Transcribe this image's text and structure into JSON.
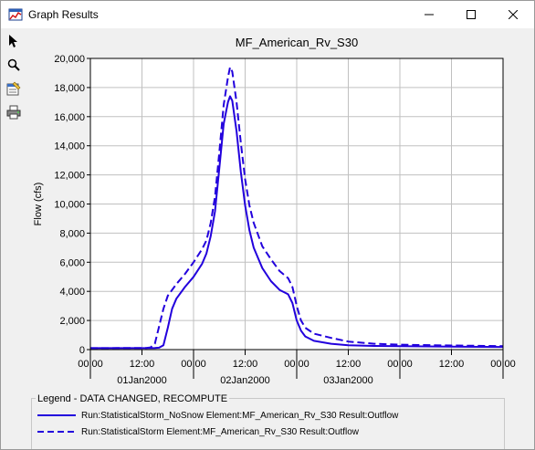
{
  "window": {
    "title": "Graph Results"
  },
  "toolbar": {
    "tools": [
      "select-arrow",
      "zoom",
      "properties",
      "print"
    ]
  },
  "chart_data": {
    "type": "line",
    "title": "MF_American_Rv_S30",
    "ylabel": "Flow (cfs)",
    "xlabel": "",
    "ylim": [
      0,
      20000
    ],
    "xlim": [
      "2000-01-01 00:00",
      "2000-01-05 00:00"
    ],
    "y_ticks": [
      "0",
      "2,000",
      "4,000",
      "6,000",
      "8,000",
      "10,000",
      "12,000",
      "14,000",
      "16,000",
      "18,000",
      "20,000"
    ],
    "x_ticks": [
      "00:00",
      "12:00",
      "00:00",
      "12:00",
      "00:00",
      "12:00",
      "00:00",
      "12:00",
      "00:00"
    ],
    "day_labels": [
      "01Jan2000",
      "02Jan2000",
      "03Jan2000"
    ],
    "grid": true,
    "series": [
      {
        "name": "Run:StatisticalStorm_NoSnow Element:MF_American_Rv_S30 Result:Outflow",
        "color": "#2200dd",
        "style": "solid",
        "points": [
          [
            0,
            100
          ],
          [
            15,
            110
          ],
          [
            16,
            130
          ],
          [
            17,
            300
          ],
          [
            18,
            1500
          ],
          [
            19,
            2800
          ],
          [
            20,
            3500
          ],
          [
            22,
            4300
          ],
          [
            24,
            5000
          ],
          [
            26,
            5900
          ],
          [
            27,
            6600
          ],
          [
            28,
            7800
          ],
          [
            29,
            9500
          ],
          [
            30,
            12500
          ],
          [
            31,
            15500
          ],
          [
            32,
            17000
          ],
          [
            32.5,
            17400
          ],
          [
            33,
            17100
          ],
          [
            34,
            15000
          ],
          [
            35,
            12200
          ],
          [
            36,
            9900
          ],
          [
            37,
            8200
          ],
          [
            38,
            7000
          ],
          [
            40,
            5600
          ],
          [
            42,
            4700
          ],
          [
            44,
            4100
          ],
          [
            46,
            3800
          ],
          [
            47,
            3200
          ],
          [
            48,
            2000
          ],
          [
            49,
            1300
          ],
          [
            50,
            900
          ],
          [
            52,
            600
          ],
          [
            56,
            400
          ],
          [
            60,
            300
          ],
          [
            66,
            250
          ],
          [
            72,
            230
          ],
          [
            84,
            200
          ],
          [
            96,
            180
          ]
        ]
      },
      {
        "name": "Run:StatisticalStorm Element:MF_American_Rv_S30 Result:Outflow",
        "color": "#2200dd",
        "style": "dashed",
        "points": [
          [
            0,
            100
          ],
          [
            13,
            110
          ],
          [
            14,
            150
          ],
          [
            15,
            400
          ],
          [
            16,
            1600
          ],
          [
            17,
            2800
          ],
          [
            18,
            3700
          ],
          [
            20,
            4500
          ],
          [
            22,
            5200
          ],
          [
            24,
            6000
          ],
          [
            26,
            6900
          ],
          [
            27,
            7500
          ],
          [
            28,
            8700
          ],
          [
            29,
            10500
          ],
          [
            30,
            13600
          ],
          [
            31,
            16800
          ],
          [
            32,
            18700
          ],
          [
            32.5,
            19400
          ],
          [
            33,
            19100
          ],
          [
            34,
            17000
          ],
          [
            35,
            14200
          ],
          [
            36,
            11700
          ],
          [
            37,
            9900
          ],
          [
            38,
            8700
          ],
          [
            40,
            7100
          ],
          [
            42,
            6200
          ],
          [
            44,
            5400
          ],
          [
            46,
            4900
          ],
          [
            47,
            4300
          ],
          [
            48,
            3000
          ],
          [
            49,
            2000
          ],
          [
            50,
            1500
          ],
          [
            52,
            1100
          ],
          [
            56,
            800
          ],
          [
            60,
            550
          ],
          [
            66,
            400
          ],
          [
            72,
            340
          ],
          [
            84,
            280
          ],
          [
            96,
            240
          ]
        ]
      }
    ]
  },
  "legend": {
    "title": "Legend - DATA CHANGED, RECOMPUTE",
    "items": [
      "Run:StatisticalStorm_NoSnow Element:MF_American_Rv_S30 Result:Outflow",
      "Run:StatisticalStorm Element:MF_American_Rv_S30 Result:Outflow"
    ]
  }
}
